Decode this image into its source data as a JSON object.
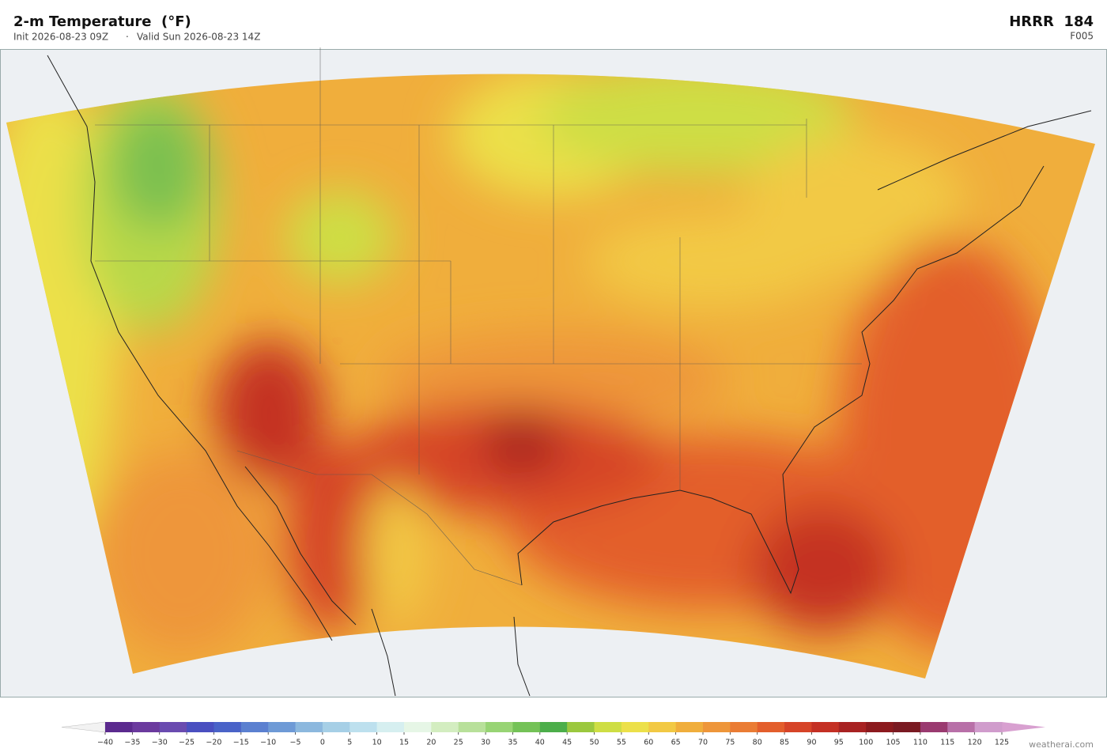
{
  "header": {
    "title": "2-m Temperature  (°F)",
    "init": "Init 2026-08-23 09Z",
    "valid": "Valid Sun 2026-08-23 14Z",
    "model": "HRRR  184",
    "forecast_hour": "F005"
  },
  "colorbar": {
    "ticks": [
      {
        "value": -40,
        "label": "−40"
      },
      {
        "value": -35,
        "label": "−35"
      },
      {
        "value": -30,
        "label": "−30"
      },
      {
        "value": -25,
        "label": "−25"
      },
      {
        "value": -20,
        "label": "−20"
      },
      {
        "value": -15,
        "label": "−15"
      },
      {
        "value": -10,
        "label": "−10"
      },
      {
        "value": -5,
        "label": "−5"
      },
      0,
      5,
      10,
      15,
      20,
      25,
      30,
      35,
      40,
      45,
      50,
      55,
      60,
      65,
      70,
      75,
      80,
      85,
      90,
      95,
      100,
      105,
      110,
      115,
      120,
      125
    ],
    "colors": [
      "#5b2a8e",
      "#6b3a9e",
      "#6a4bb0",
      "#4a4fc0",
      "#4a63c8",
      "#5b80d0",
      "#6e9ad6",
      "#8cb8de",
      "#a6cfe6",
      "#bde0ee",
      "#d6eff0",
      "#e6f6e6",
      "#d3edc0",
      "#b8e09a",
      "#98d474",
      "#74c257",
      "#4cae4a",
      "#9bc83e",
      "#cede44",
      "#ece04a",
      "#f2c944",
      "#f0ae3c",
      "#ee963a",
      "#ea7c34",
      "#e35e2c",
      "#d64428",
      "#c43024",
      "#a82222",
      "#8c1a1e",
      "#7a1a22",
      "#9a3a70",
      "#b870a8",
      "#d09ccc"
    ],
    "under_color": "#f2f2f2",
    "over_color": "#d8a0d0"
  },
  "credit": "weatherai.com"
}
